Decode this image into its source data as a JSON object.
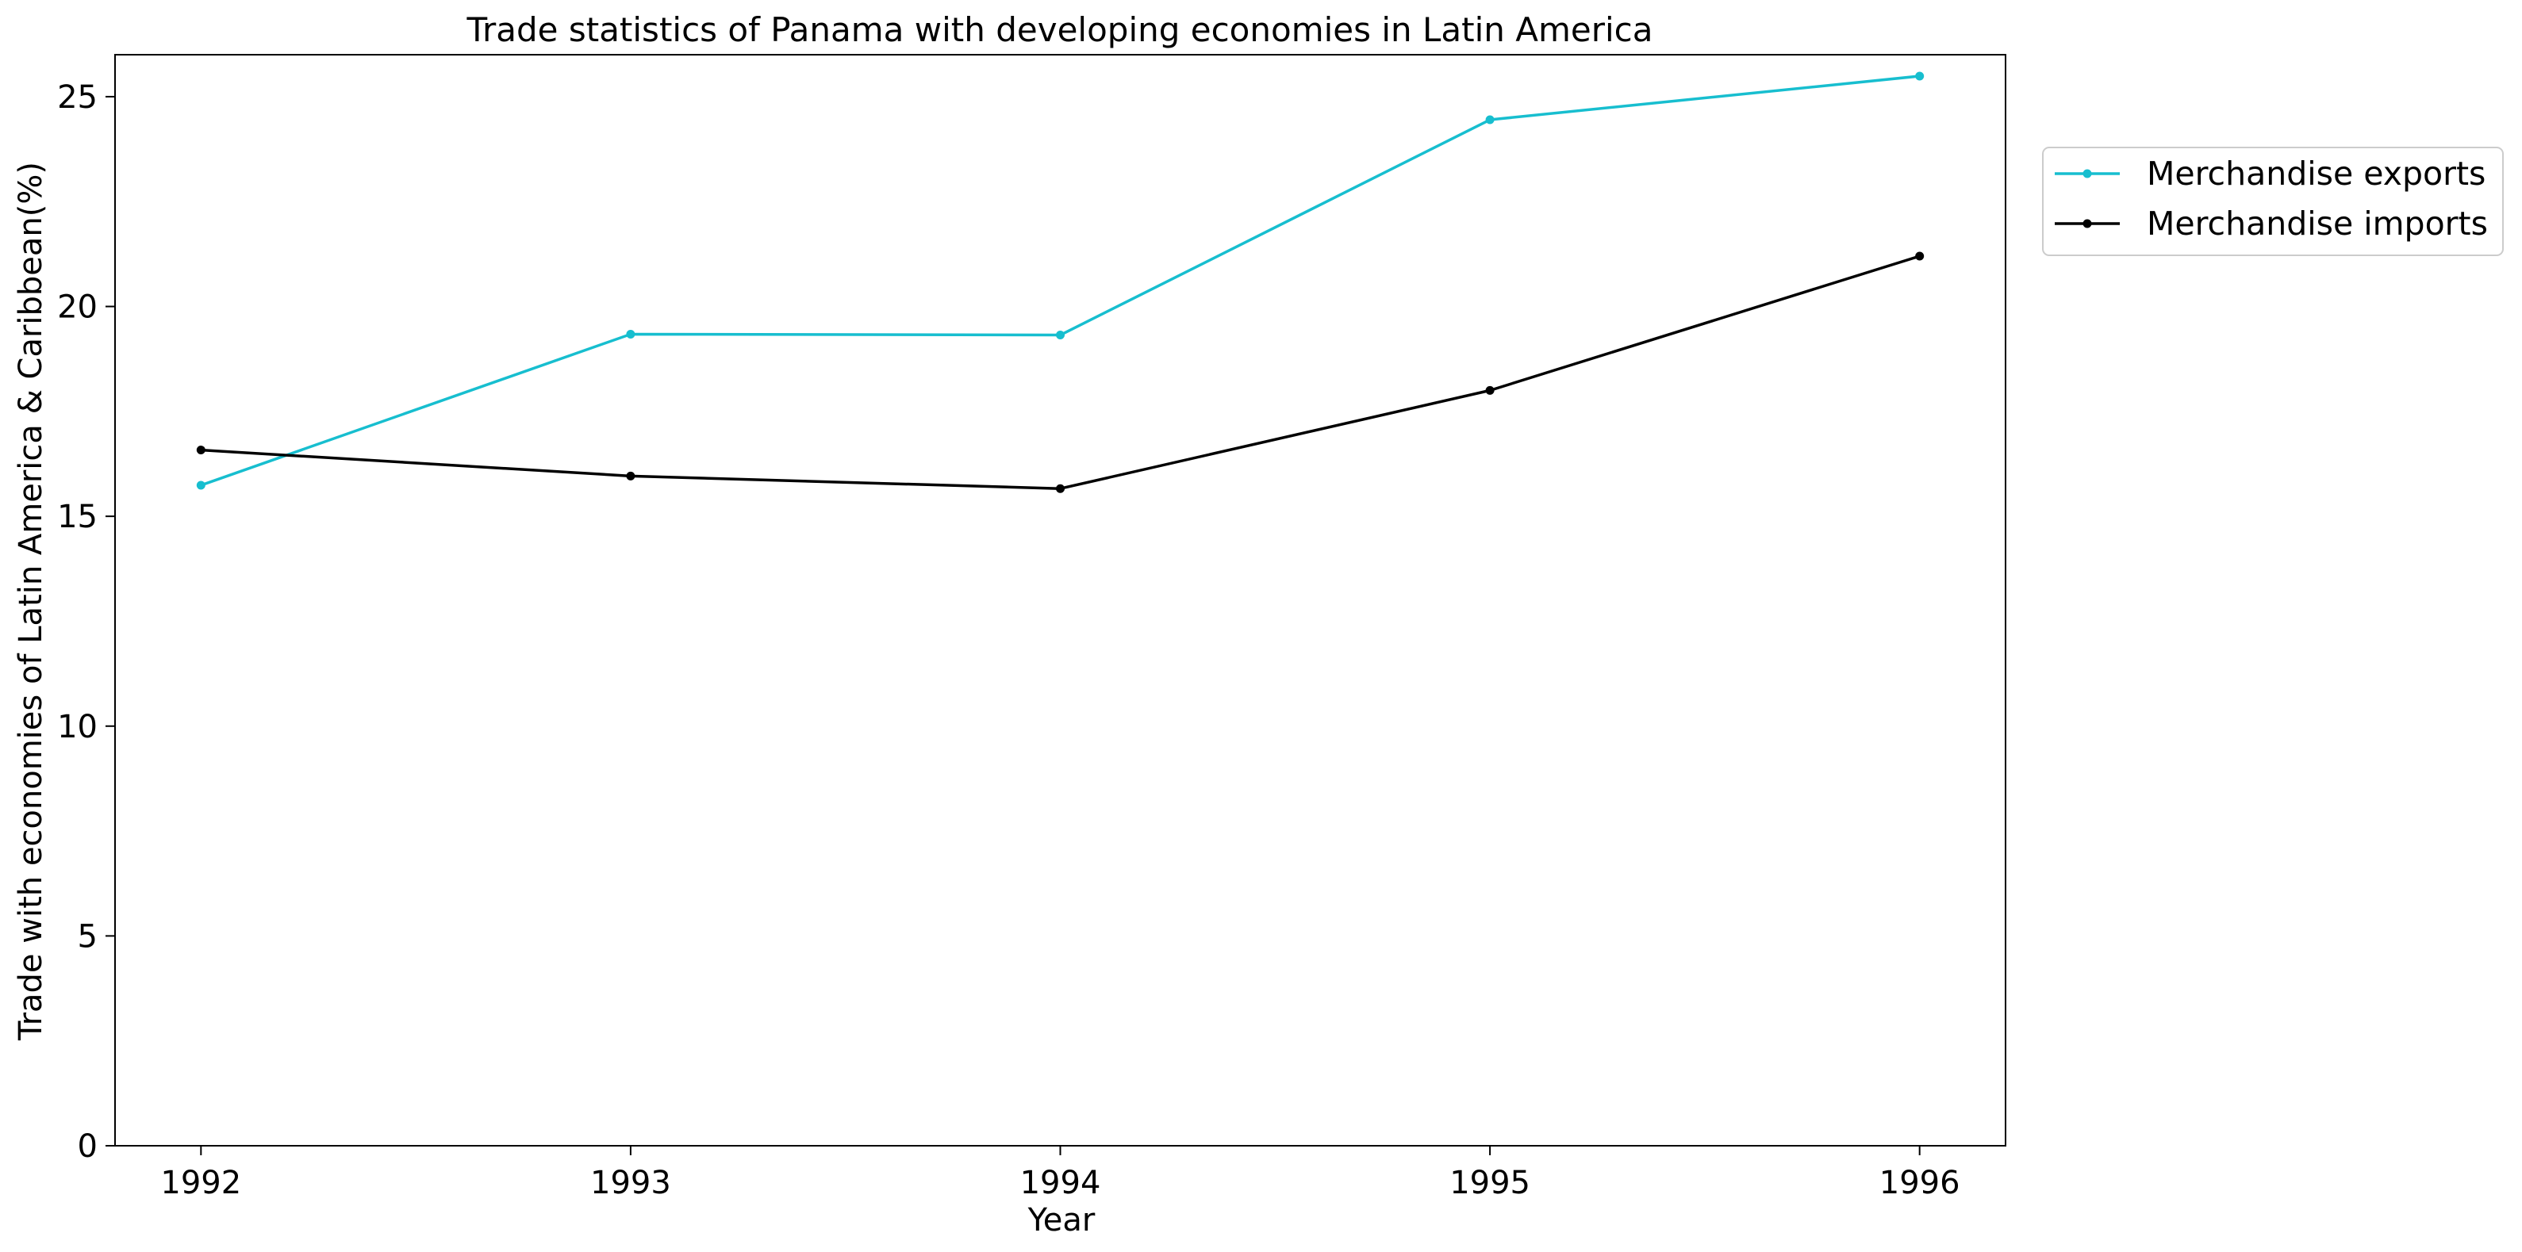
{
  "chart_data": {
    "type": "line",
    "title": "Trade statistics of Panama with developing economies in Latin America",
    "xlabel": "Year",
    "ylabel": "Trade with economies of Latin America & Caribbean(%)",
    "x": [
      "1992",
      "1993",
      "1994",
      "1995",
      "1996"
    ],
    "xlim": [
      1991.8,
      1996.2
    ],
    "ylim": [
      0,
      26
    ],
    "yticks": [
      0,
      5,
      10,
      15,
      20,
      25
    ],
    "grid": false,
    "legend_position": "top-right, outside plot area",
    "series": [
      {
        "name": "Merchandise exports",
        "color": "#17becf",
        "marker": "dot",
        "values": [
          15.74,
          19.34,
          19.32,
          24.45,
          25.49
        ]
      },
      {
        "name": "Merchandise imports",
        "color": "#000000",
        "marker": "dot",
        "values": [
          16.58,
          15.96,
          15.66,
          18.0,
          21.2
        ]
      }
    ]
  }
}
